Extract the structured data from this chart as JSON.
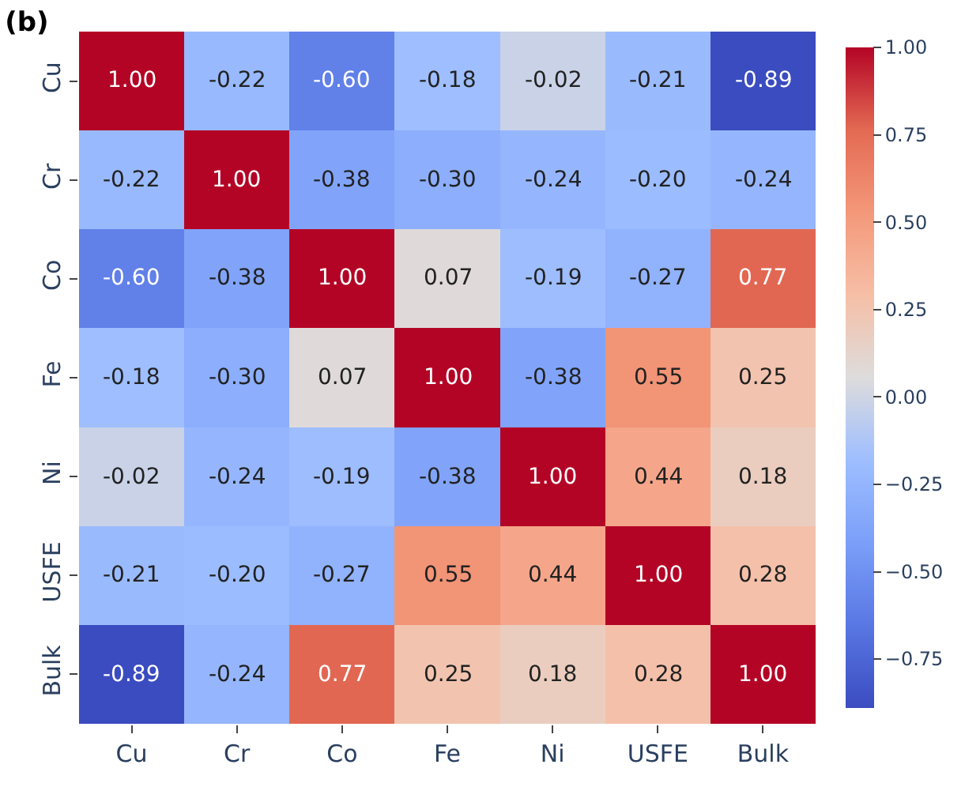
{
  "chart_data": {
    "type": "heatmap",
    "title": "(b)",
    "categories": [
      "Cu",
      "Cr",
      "Co",
      "Fe",
      "Ni",
      "USFE",
      "Bulk"
    ],
    "y_categories": [
      "Cu",
      "Cr",
      "Co",
      "Fe",
      "Ni",
      "USFE",
      "Bulk"
    ],
    "cells": [
      [
        1.0,
        -0.22,
        -0.6,
        -0.18,
        -0.02,
        -0.21,
        -0.89
      ],
      [
        -0.22,
        1.0,
        -0.38,
        -0.3,
        -0.24,
        -0.2,
        -0.24
      ],
      [
        -0.6,
        -0.38,
        1.0,
        0.07,
        -0.19,
        -0.27,
        0.77
      ],
      [
        -0.18,
        -0.3,
        0.07,
        1.0,
        -0.38,
        0.55,
        0.25
      ],
      [
        -0.02,
        -0.24,
        -0.19,
        -0.38,
        1.0,
        0.44,
        0.18
      ],
      [
        -0.21,
        -0.2,
        -0.27,
        0.55,
        0.44,
        1.0,
        0.28
      ],
      [
        -0.89,
        -0.24,
        0.77,
        0.25,
        0.18,
        0.28,
        1.0
      ]
    ],
    "data_labels": true,
    "cell_labels": [
      [
        "1.00",
        "-0.22",
        "-0.60",
        "-0.18",
        "-0.02",
        "-0.21",
        "-0.89"
      ],
      [
        "-0.22",
        "1.00",
        "-0.38",
        "-0.30",
        "-0.24",
        "-0.20",
        "-0.24"
      ],
      [
        "-0.60",
        "-0.38",
        "1.00",
        "0.07",
        "-0.19",
        "-0.27",
        "0.77"
      ],
      [
        "-0.18",
        "-0.30",
        "0.07",
        "1.00",
        "-0.38",
        "0.55",
        "0.25"
      ],
      [
        "-0.02",
        "-0.24",
        "-0.19",
        "-0.38",
        "1.00",
        "0.44",
        "0.18"
      ],
      [
        "-0.21",
        "-0.20",
        "-0.27",
        "0.55",
        "0.44",
        "1.00",
        "0.28"
      ],
      [
        "-0.89",
        "-0.24",
        "0.77",
        "0.25",
        "0.18",
        "0.28",
        "1.00"
      ]
    ],
    "clim": [
      -0.89,
      1.0
    ],
    "cticks": [
      {
        "value": 1.0,
        "label": "1.00"
      },
      {
        "value": 0.75,
        "label": "0.75"
      },
      {
        "value": 0.5,
        "label": "0.50"
      },
      {
        "value": 0.25,
        "label": "0.25"
      },
      {
        "value": 0.0,
        "label": "0.00"
      },
      {
        "value": -0.25,
        "label": "−0.25"
      },
      {
        "value": -0.5,
        "label": "−0.50"
      },
      {
        "value": -0.75,
        "label": "−0.75"
      }
    ]
  }
}
